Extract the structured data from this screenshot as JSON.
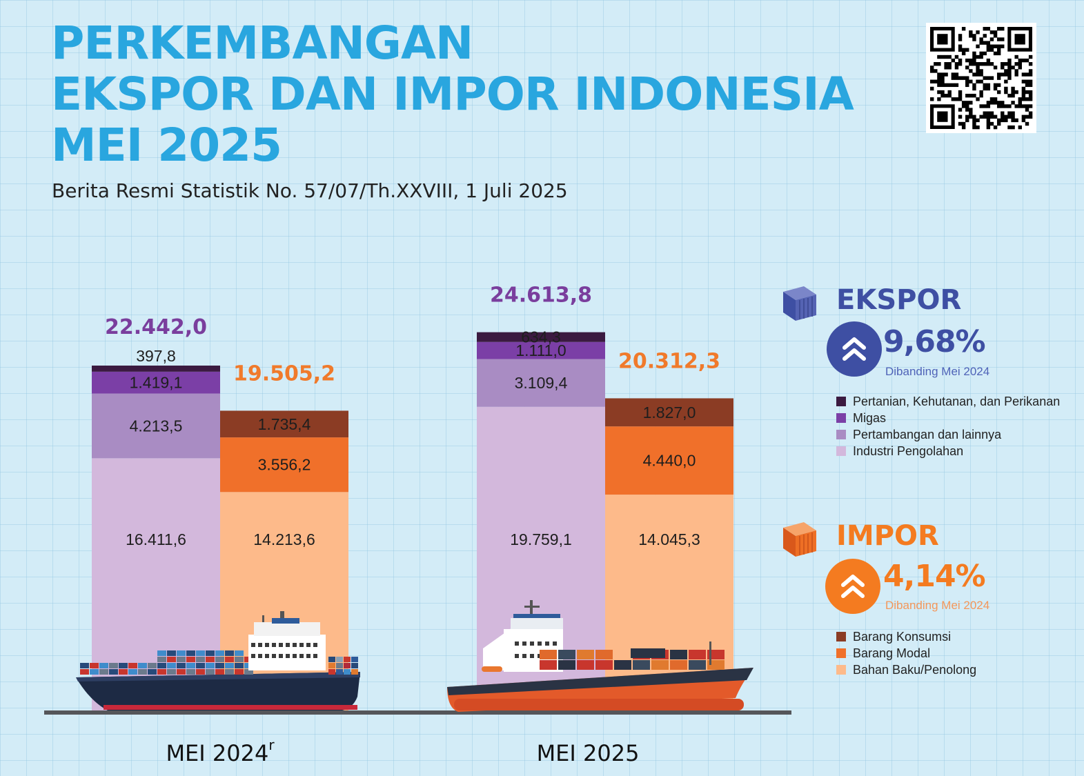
{
  "header": {
    "title_lines": [
      "PERKEMBANGAN",
      "EKSPOR DAN IMPOR INDONESIA",
      "MEI 2025"
    ],
    "subtitle": "Berita Resmi Statistik No. 57/07/Th.XXVIII, 1 Juli 2025"
  },
  "colors": {
    "title": "#29a6df",
    "ekspor_total": "#7a3e9d",
    "impor_total": "#f07a2b",
    "ekspor_accent": "#3e4fa3",
    "impor_accent": "#f47b20"
  },
  "icons": [
    "qr-code-icon",
    "container-ekspor-icon",
    "container-impor-icon",
    "chevron-up-double-icon",
    "cargo-ship-icon"
  ],
  "chart_data": {
    "type": "bar",
    "stacked": true,
    "categories": [
      "MEI 2024",
      "MEI 2025"
    ],
    "category_labels": [
      {
        "text": "MEI 2024",
        "superscript": "r"
      },
      {
        "text": "MEI 2025",
        "superscript": ""
      }
    ],
    "groups": [
      {
        "name": "EKSPOR",
        "totals": [
          22442.0,
          24613.8
        ],
        "total_labels": [
          "22.442,0",
          "24.613,8"
        ],
        "series": [
          {
            "name": "Industri Pengolahan",
            "color": "#d3b8dc",
            "values": [
              16411.6,
              19759.1
            ],
            "labels": [
              "16.411,6",
              "19.759,1"
            ]
          },
          {
            "name": "Pertambangan dan lainnya",
            "color": "#a98cc3",
            "values": [
              4213.5,
              3109.4
            ],
            "labels": [
              "4.213,5",
              "3.109,4"
            ]
          },
          {
            "name": "Migas",
            "color": "#7b3fa6",
            "values": [
              1419.1,
              1111.0
            ],
            "labels": [
              "1.419,1",
              "1.111,0"
            ]
          },
          {
            "name": "Pertanian, Kehutanan, dan Perikanan",
            "color": "#3b1a40",
            "values": [
              397.8,
              634.3
            ],
            "labels": [
              "397,8",
              "634,3"
            ]
          }
        ]
      },
      {
        "name": "IMPOR",
        "totals": [
          19505.2,
          20312.3
        ],
        "total_labels": [
          "19.505,2",
          "20.312,3"
        ],
        "series": [
          {
            "name": "Bahan Baku/Penolong",
            "color": "#fdba8a",
            "values": [
              14213.6,
              14045.3
            ],
            "labels": [
              "14.213,6",
              "14.045,3"
            ]
          },
          {
            "name": "Barang Modal",
            "color": "#f0702a",
            "values": [
              3556.2,
              4440.0
            ],
            "labels": [
              "3.556,2",
              "4.440,0"
            ]
          },
          {
            "name": "Barang Konsumsi",
            "color": "#8b3c24",
            "values": [
              1735.4,
              1827.0
            ],
            "labels": [
              "1.735,4",
              "1.827,0"
            ]
          }
        ]
      }
    ]
  },
  "ekspor_panel": {
    "title": "EKSPOR",
    "change": "9,68%",
    "comparison": "Dibanding Mei 2024",
    "legend": [
      "Pertanian, Kehutanan, dan Perikanan",
      "Migas",
      "Pertambangan dan lainnya",
      "Industri Pengolahan"
    ],
    "legend_colors": [
      "#3b1a40",
      "#7b3fa6",
      "#a98cc3",
      "#d3b8dc"
    ]
  },
  "impor_panel": {
    "title": "IMPOR",
    "change": "4,14%",
    "comparison": "Dibanding Mei 2024",
    "legend": [
      "Barang Konsumsi",
      "Barang Modal",
      "Bahan Baku/Penolong"
    ],
    "legend_colors": [
      "#8b3c24",
      "#f0702a",
      "#fdba8a"
    ]
  }
}
